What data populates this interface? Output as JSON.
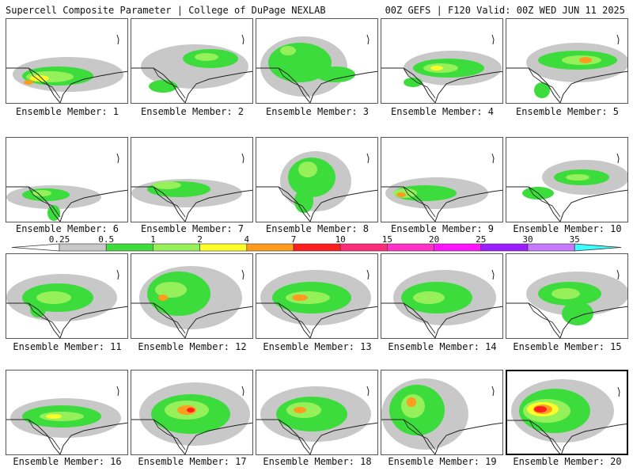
{
  "header": {
    "left": "Supercell Composite Parameter | College of DuPage NEXLAB",
    "right": "00Z GEFS | F120 Valid: 00Z WED JUN 11 2025"
  },
  "colorbar": {
    "levels": [
      "0.25",
      "0.5",
      "1",
      "2",
      "4",
      "7",
      "10",
      "15",
      "20",
      "25",
      "30",
      "35"
    ],
    "colors": [
      "#c8c8c8",
      "#3cdc3c",
      "#96f05a",
      "#ffff28",
      "#ff9b1e",
      "#ff1e1e",
      "#ff2d78",
      "#ff32c8",
      "#ff14ff",
      "#9b1eff",
      "#c878ff",
      "#3cffff"
    ]
  },
  "members": [
    {
      "label": "Ensemble Member: 1"
    },
    {
      "label": "Ensemble Member: 2"
    },
    {
      "label": "Ensemble Member: 3"
    },
    {
      "label": "Ensemble Member: 4"
    },
    {
      "label": "Ensemble Member: 5"
    },
    {
      "label": "Ensemble Member: 6"
    },
    {
      "label": "Ensemble Member: 7"
    },
    {
      "label": "Ensemble Member: 8"
    },
    {
      "label": "Ensemble Member: 9"
    },
    {
      "label": "Ensemble Member: 10"
    },
    {
      "label": "Ensemble Member: 11"
    },
    {
      "label": "Ensemble Member: 12"
    },
    {
      "label": "Ensemble Member: 13"
    },
    {
      "label": "Ensemble Member: 14"
    },
    {
      "label": "Ensemble Member: 15"
    },
    {
      "label": "Ensemble Member: 16"
    },
    {
      "label": "Ensemble Member: 17"
    },
    {
      "label": "Ensemble Member: 18"
    },
    {
      "label": "Ensemble Member: 19"
    },
    {
      "label": "Ensemble Member: 20",
      "selected": true
    }
  ],
  "legend_colors": {
    "gray": "#c8c8c8",
    "green": "#3cdc3c",
    "lightgreen": "#96f05a",
    "yellow": "#ffff28",
    "orange": "#ff9b1e",
    "red": "#ff1e1e"
  }
}
